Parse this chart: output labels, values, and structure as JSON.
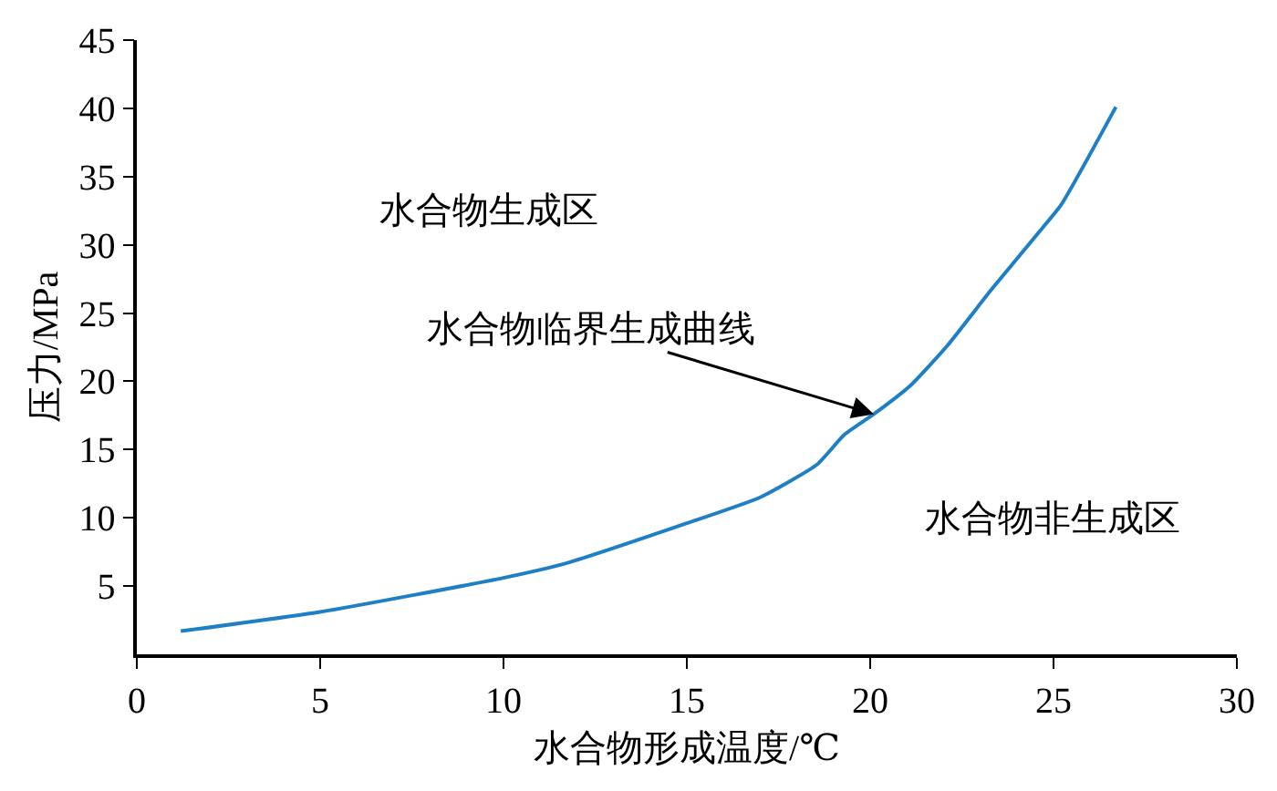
{
  "chart_data": {
    "type": "line",
    "xlabel": "水合物形成温度/℃",
    "ylabel": "压力/MPa",
    "xlim": [
      0,
      30
    ],
    "xticks": [
      0,
      5,
      10,
      15,
      20,
      25,
      30
    ],
    "ylim": [
      0,
      45
    ],
    "yticks": [
      5,
      10,
      15,
      20,
      25,
      30,
      35,
      40,
      45
    ],
    "marker": "none",
    "line_style": "solid",
    "series": [
      {
        "color": "#1f7fc4",
        "x": [
          1.2,
          5,
          10,
          11.75,
          15,
          17,
          18.55,
          19.3,
          20.1,
          21.1,
          22.1,
          23.3,
          24.5,
          25.2,
          26.7
        ],
        "values": [
          1.7,
          3.1,
          5.6,
          6.7,
          9.6,
          11.5,
          13.9,
          16.1,
          17.6,
          19.7,
          22.6,
          26.7,
          30.6,
          32.9,
          40.1
        ]
      }
    ],
    "annotations": [
      "水合物生成区",
      {
        "text": "水合物临界生成曲线",
        "x": 20.1,
        "y": 17.6
      },
      "水合物非生成区"
    ]
  }
}
